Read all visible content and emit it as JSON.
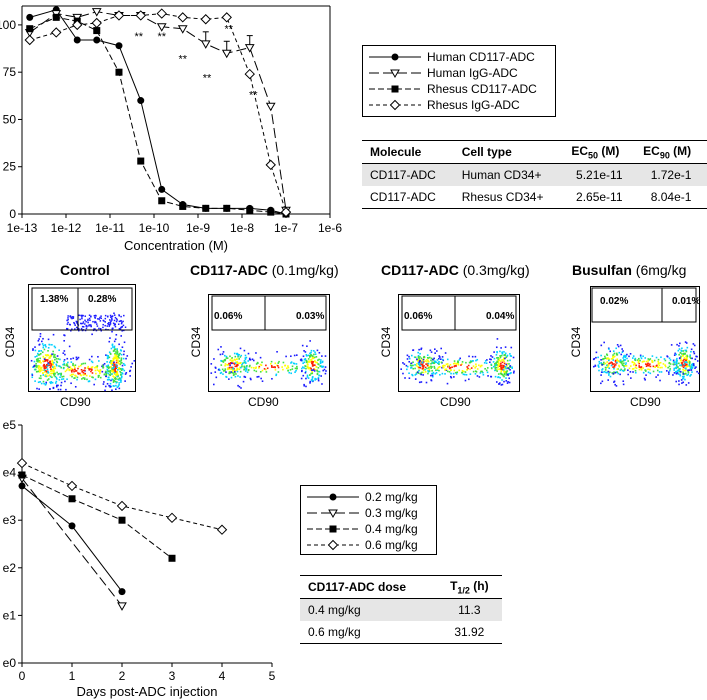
{
  "chart_data": [
    {
      "type": "line",
      "x_scale": "log",
      "xlabel": "Concentration (M)",
      "ylabel": "",
      "x_ticks": [
        "1e-13",
        "1e-12",
        "1e-11",
        "1e-10",
        "1e-9",
        "1e-8",
        "1e-7",
        "1e-6"
      ],
      "y_ticks": [
        "0",
        "25",
        "50",
        "75",
        "100"
      ],
      "xlim": [
        1e-13,
        1e-06
      ],
      "ylim": [
        0,
        110
      ],
      "series": [
        {
          "name": "Human CD117-ADC",
          "marker": "filled-circle",
          "dash": "solid",
          "x": [
            1.5e-13,
            6e-13,
            1.8e-12,
            5e-12,
            1.6e-11,
            5e-11,
            1.5e-10,
            4.5e-10,
            1.5e-09,
            4.5e-09,
            1.5e-08,
            4.5e-08,
            1e-07
          ],
          "y": [
            104,
            108,
            92,
            92,
            89,
            60,
            13,
            5,
            3,
            3,
            3,
            2,
            0
          ]
        },
        {
          "name": "Human IgG-ADC",
          "marker": "open-triangle-down",
          "dash": "long-dash",
          "x": [
            1.5e-13,
            6e-13,
            1.8e-12,
            5e-12,
            1.6e-11,
            5e-11,
            1.5e-10,
            4.5e-10,
            1.5e-09,
            4.5e-09,
            1.5e-08,
            4.5e-08,
            1e-07
          ],
          "y": [
            96,
            106,
            104,
            107,
            105,
            105,
            99,
            98,
            90,
            85,
            88,
            57,
            2
          ]
        },
        {
          "name": "Rhesus CD117-ADC",
          "marker": "filled-square",
          "dash": "dash",
          "x": [
            1.5e-13,
            6e-13,
            1.8e-12,
            5e-12,
            1.6e-11,
            5e-11,
            1.5e-10,
            4.5e-10,
            1.5e-09,
            4.5e-09,
            1.5e-08,
            4.5e-08,
            1e-07
          ],
          "y": [
            98,
            104,
            102,
            97,
            75,
            28,
            7,
            4,
            3,
            3,
            2,
            1,
            0
          ]
        },
        {
          "name": "Rhesus IgG-ADC",
          "marker": "open-diamond",
          "dash": "short-dash",
          "x": [
            1.5e-13,
            6e-13,
            1.8e-12,
            5e-12,
            1.6e-11,
            5e-11,
            1.5e-10,
            4.5e-10,
            1.5e-09,
            4.5e-09,
            1.5e-08,
            4.5e-08,
            1e-07
          ],
          "y": [
            92,
            96,
            100,
            101,
            105,
            105,
            106,
            104,
            103,
            104,
            74,
            26,
            1
          ]
        }
      ],
      "annotations": [
        "**",
        "**",
        "**",
        "**",
        "**",
        "**"
      ]
    },
    {
      "type": "line",
      "xlabel": "Days post-ADC injection",
      "ylabel": "",
      "x_ticks": [
        "0",
        "1",
        "2",
        "3",
        "4",
        "5"
      ],
      "y_ticks": [
        "e0",
        "e1",
        "e2",
        "e3",
        "e4",
        "e5"
      ],
      "xlim": [
        0,
        5
      ],
      "ylim": [
        0,
        5
      ],
      "series": [
        {
          "name": "0.2 mg/kg",
          "marker": "filled-circle",
          "dash": "solid",
          "x": [
            0,
            1,
            2
          ],
          "y": [
            3.72,
            2.88,
            1.5
          ]
        },
        {
          "name": "0.3 mg/kg",
          "marker": "open-triangle-down",
          "dash": "long-dash",
          "x": [
            0,
            2
          ],
          "y": [
            3.88,
            1.2
          ]
        },
        {
          "name": "0.4 mg/kg",
          "marker": "filled-square",
          "dash": "dash",
          "x": [
            0,
            1,
            2,
            3
          ],
          "y": [
            3.95,
            3.45,
            3.0,
            2.2
          ]
        },
        {
          "name": "0.6 mg/kg",
          "marker": "open-diamond",
          "dash": "short-dash",
          "x": [
            0,
            1,
            2,
            3,
            4
          ],
          "y": [
            4.2,
            3.72,
            3.3,
            3.05,
            2.8
          ]
        }
      ]
    }
  ],
  "top_legend": {
    "items": [
      {
        "label": "Human CD117-ADC"
      },
      {
        "label": "Human IgG-ADC"
      },
      {
        "label": "Rhesus CD117-ADC"
      },
      {
        "label": "Rhesus IgG-ADC"
      }
    ]
  },
  "ec_table": {
    "headers": [
      "Molecule",
      "Cell type",
      "EC",
      "EC"
    ],
    "header_subs": [
      "",
      "",
      "50",
      "90"
    ],
    "header_units": [
      "",
      "",
      " (M)",
      " (M)"
    ],
    "rows": [
      [
        "CD117-ADC",
        "Human CD34+",
        "5.21e-11",
        "1.72e-1"
      ],
      [
        "CD117-ADC",
        "Rhesus CD34+",
        "2.65e-11",
        "8.04e-1"
      ]
    ]
  },
  "flow_panels": [
    {
      "title_bold": "Control",
      "title_rest": "",
      "ylabel": "CD34",
      "xlabel": "CD90",
      "gate_left": "1.38%",
      "gate_right": "0.28%"
    },
    {
      "title_bold": "CD117-ADC",
      "title_rest": " (0.1mg/kg)",
      "ylabel": "CD34",
      "xlabel": "CD90",
      "gate_left": "0.06%",
      "gate_right": "0.03%"
    },
    {
      "title_bold": "CD117-ADC",
      "title_rest": " (0.3mg/kg)",
      "ylabel": "CD34",
      "xlabel": "CD90",
      "gate_left": "0.06%",
      "gate_right": "0.04%"
    },
    {
      "title_bold": "Busulfan",
      "title_rest": " (6mg/kg",
      "ylabel": "CD34",
      "xlabel": "CD90",
      "gate_left": "0.02%",
      "gate_right": "0.01%"
    }
  ],
  "bottom_legend": {
    "items": [
      {
        "label": "0.2 mg/kg"
      },
      {
        "label": "0.3 mg/kg"
      },
      {
        "label": "0.4 mg/kg"
      },
      {
        "label": "0.6 mg/kg"
      }
    ]
  },
  "half_life_table": {
    "headers": [
      "CD117-ADC dose",
      "T",
      "1/2",
      " (h)"
    ],
    "rows": [
      [
        "0.4 mg/kg",
        "11.3"
      ],
      [
        "0.6 mg/kg",
        "31.92"
      ]
    ]
  },
  "colors": {
    "flow_blue": "#1a1aff",
    "flow_cyan": "#00d0ff",
    "flow_green": "#40e040",
    "flow_yellow": "#ffff00",
    "flow_red": "#ff2000",
    "table_shade": "#e6e6e6"
  }
}
